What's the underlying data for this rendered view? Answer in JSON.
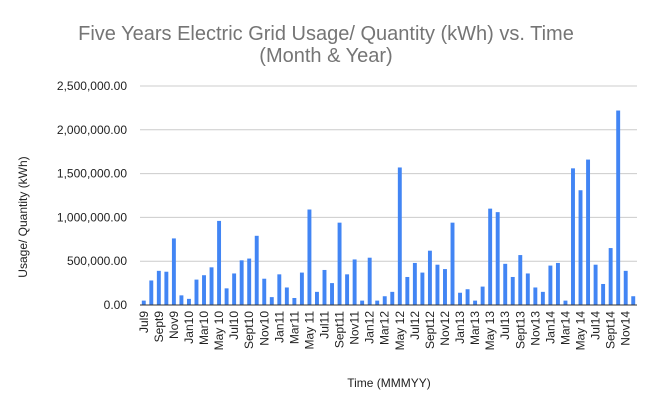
{
  "chart_data": {
    "type": "bar",
    "title_lines": [
      "Five Years Electric Grid Usage/ Quantity (kWh) vs. Time",
      "(Month & Year)"
    ],
    "xlabel": "Time (MMMYY)",
    "ylabel": "Usage/ Quantity (kWh)",
    "ylim": [
      0,
      2500000
    ],
    "y_ticks": [
      0,
      500000,
      1000000,
      1500000,
      2000000,
      2500000
    ],
    "y_tick_labels": [
      "0.00",
      "500,000.00",
      "1,000,000.00",
      "1,500,000.00",
      "2,000,000.00",
      "2,500,000.00"
    ],
    "grid": true,
    "bar_color": "#4285f4",
    "categories": [
      "Jul9",
      "Aug9",
      "Sept9",
      "Oct9",
      "Nov9",
      "Dec9",
      "Jan10",
      "Feb10",
      "Mar10",
      "Apr10",
      "May 10",
      "Jun10",
      "Jul10",
      "Aug10",
      "Sept10",
      "Oct10",
      "Nov10",
      "Dec10",
      "Jan11",
      "Feb11",
      "Mar11",
      "Apr11",
      "May 11",
      "Jun11",
      "Jul11",
      "Aug11",
      "Sept11",
      "Oct11",
      "Nov11",
      "Dec11",
      "Jan12",
      "Feb12",
      "Mar12",
      "Apr12",
      "May 12",
      "Jun12",
      "Jul12",
      "Aug12",
      "Sept12",
      "Oct12",
      "Nov12",
      "Dec12",
      "Jan13",
      "Feb13",
      "Mar13",
      "Apr13",
      "May 13",
      "Jun13",
      "Jul13",
      "Aug13",
      "Sept13",
      "Oct13",
      "Nov13",
      "Dec13",
      "Jan14",
      "Feb14",
      "Mar14",
      "Apr14",
      "May 14",
      "Jun14",
      "Jul14",
      "Aug14",
      "Sept14",
      "Oct14",
      "Nov14",
      "Dec14"
    ],
    "values": [
      50000,
      280000,
      390000,
      380000,
      760000,
      110000,
      70000,
      290000,
      340000,
      430000,
      960000,
      190000,
      360000,
      510000,
      530000,
      790000,
      300000,
      90000,
      350000,
      200000,
      80000,
      370000,
      1090000,
      150000,
      400000,
      250000,
      940000,
      350000,
      520000,
      50000,
      540000,
      50000,
      100000,
      150000,
      1570000,
      320000,
      480000,
      370000,
      620000,
      460000,
      410000,
      940000,
      140000,
      180000,
      50000,
      210000,
      1100000,
      1060000,
      470000,
      320000,
      570000,
      360000,
      200000,
      150000,
      450000,
      480000,
      50000,
      1560000,
      1310000,
      1660000,
      460000,
      240000,
      650000,
      2220000,
      390000,
      100000
    ],
    "x_tick_labels": [
      "Jul9",
      "Sept9",
      "Nov9",
      "Jan10",
      "Mar10",
      "May 10",
      "Jul10",
      "Sept10",
      "Nov10",
      "Jan11",
      "Mar11",
      "May 11",
      "Jul11",
      "Sept11",
      "Nov11",
      "Jan12",
      "Mar12",
      "May 12",
      "Jul12",
      "Sept12",
      "Nov12",
      "Jan13",
      "Mar13",
      "May 13",
      "Jul13",
      "Sept13",
      "Nov13",
      "Jan14",
      "Mar14",
      "May 14",
      "Jul14",
      "Sept14",
      "Nov14"
    ]
  }
}
